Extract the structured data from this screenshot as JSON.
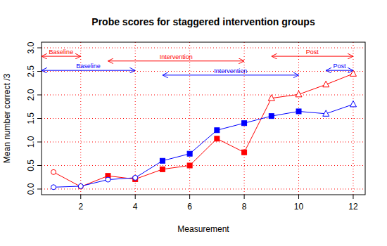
{
  "chart_data": {
    "type": "line",
    "title": "Probe scores for staggered intervention groups",
    "x_label": "Measurement",
    "y_label": "Mean number correct /3",
    "x": [
      1,
      2,
      3,
      4,
      5,
      6,
      7,
      8,
      9,
      10,
      11,
      12
    ],
    "xlim": [
      0.56,
      12.44
    ],
    "xticks": [
      2,
      4,
      6,
      8,
      10,
      12
    ],
    "ylim": [
      -0.12,
      3.12
    ],
    "yticks": [
      {
        "value": 0,
        "label": "0.0"
      },
      0.5,
      {
        "value": 1,
        "label": "1.0"
      },
      1.5,
      {
        "value": 2,
        "label": "2.0"
      },
      2.5,
      {
        "value": 3,
        "label": "3.0"
      }
    ],
    "grid": true,
    "series": [
      {
        "color": "#ff0000",
        "values": [
          0.36,
          0.05,
          0.28,
          0.21,
          0.42,
          0.5,
          1.07,
          0.78,
          1.93,
          2.01,
          2.22,
          2.45
        ],
        "phases": [
          {
            "label": "Baseline",
            "range": [
              0.56,
              2
            ],
            "y": 2.82,
            "marker": "open-circle"
          },
          {
            "label": "Intervention",
            "range": [
              3,
              8
            ],
            "y": 2.72,
            "marker": "square"
          },
          {
            "label": "Post",
            "range": [
              9,
              12
            ],
            "y": 2.82,
            "marker": "open-triangle"
          }
        ]
      },
      {
        "color": "#0000ff",
        "values": [
          0.04,
          0.06,
          0.2,
          0.24,
          0.6,
          0.75,
          1.25,
          1.4,
          1.55,
          1.65,
          1.6,
          1.8
        ],
        "phases": [
          {
            "label": "Baseline",
            "range": [
              0.56,
              4
            ],
            "y": 2.52,
            "marker": "open-circle"
          },
          {
            "label": "Intervention",
            "range": [
              5,
              10
            ],
            "y": 2.42,
            "marker": "square"
          },
          {
            "label": "Post",
            "range": [
              11,
              12
            ],
            "y": 2.52,
            "marker": "open-triangle"
          }
        ]
      }
    ]
  }
}
